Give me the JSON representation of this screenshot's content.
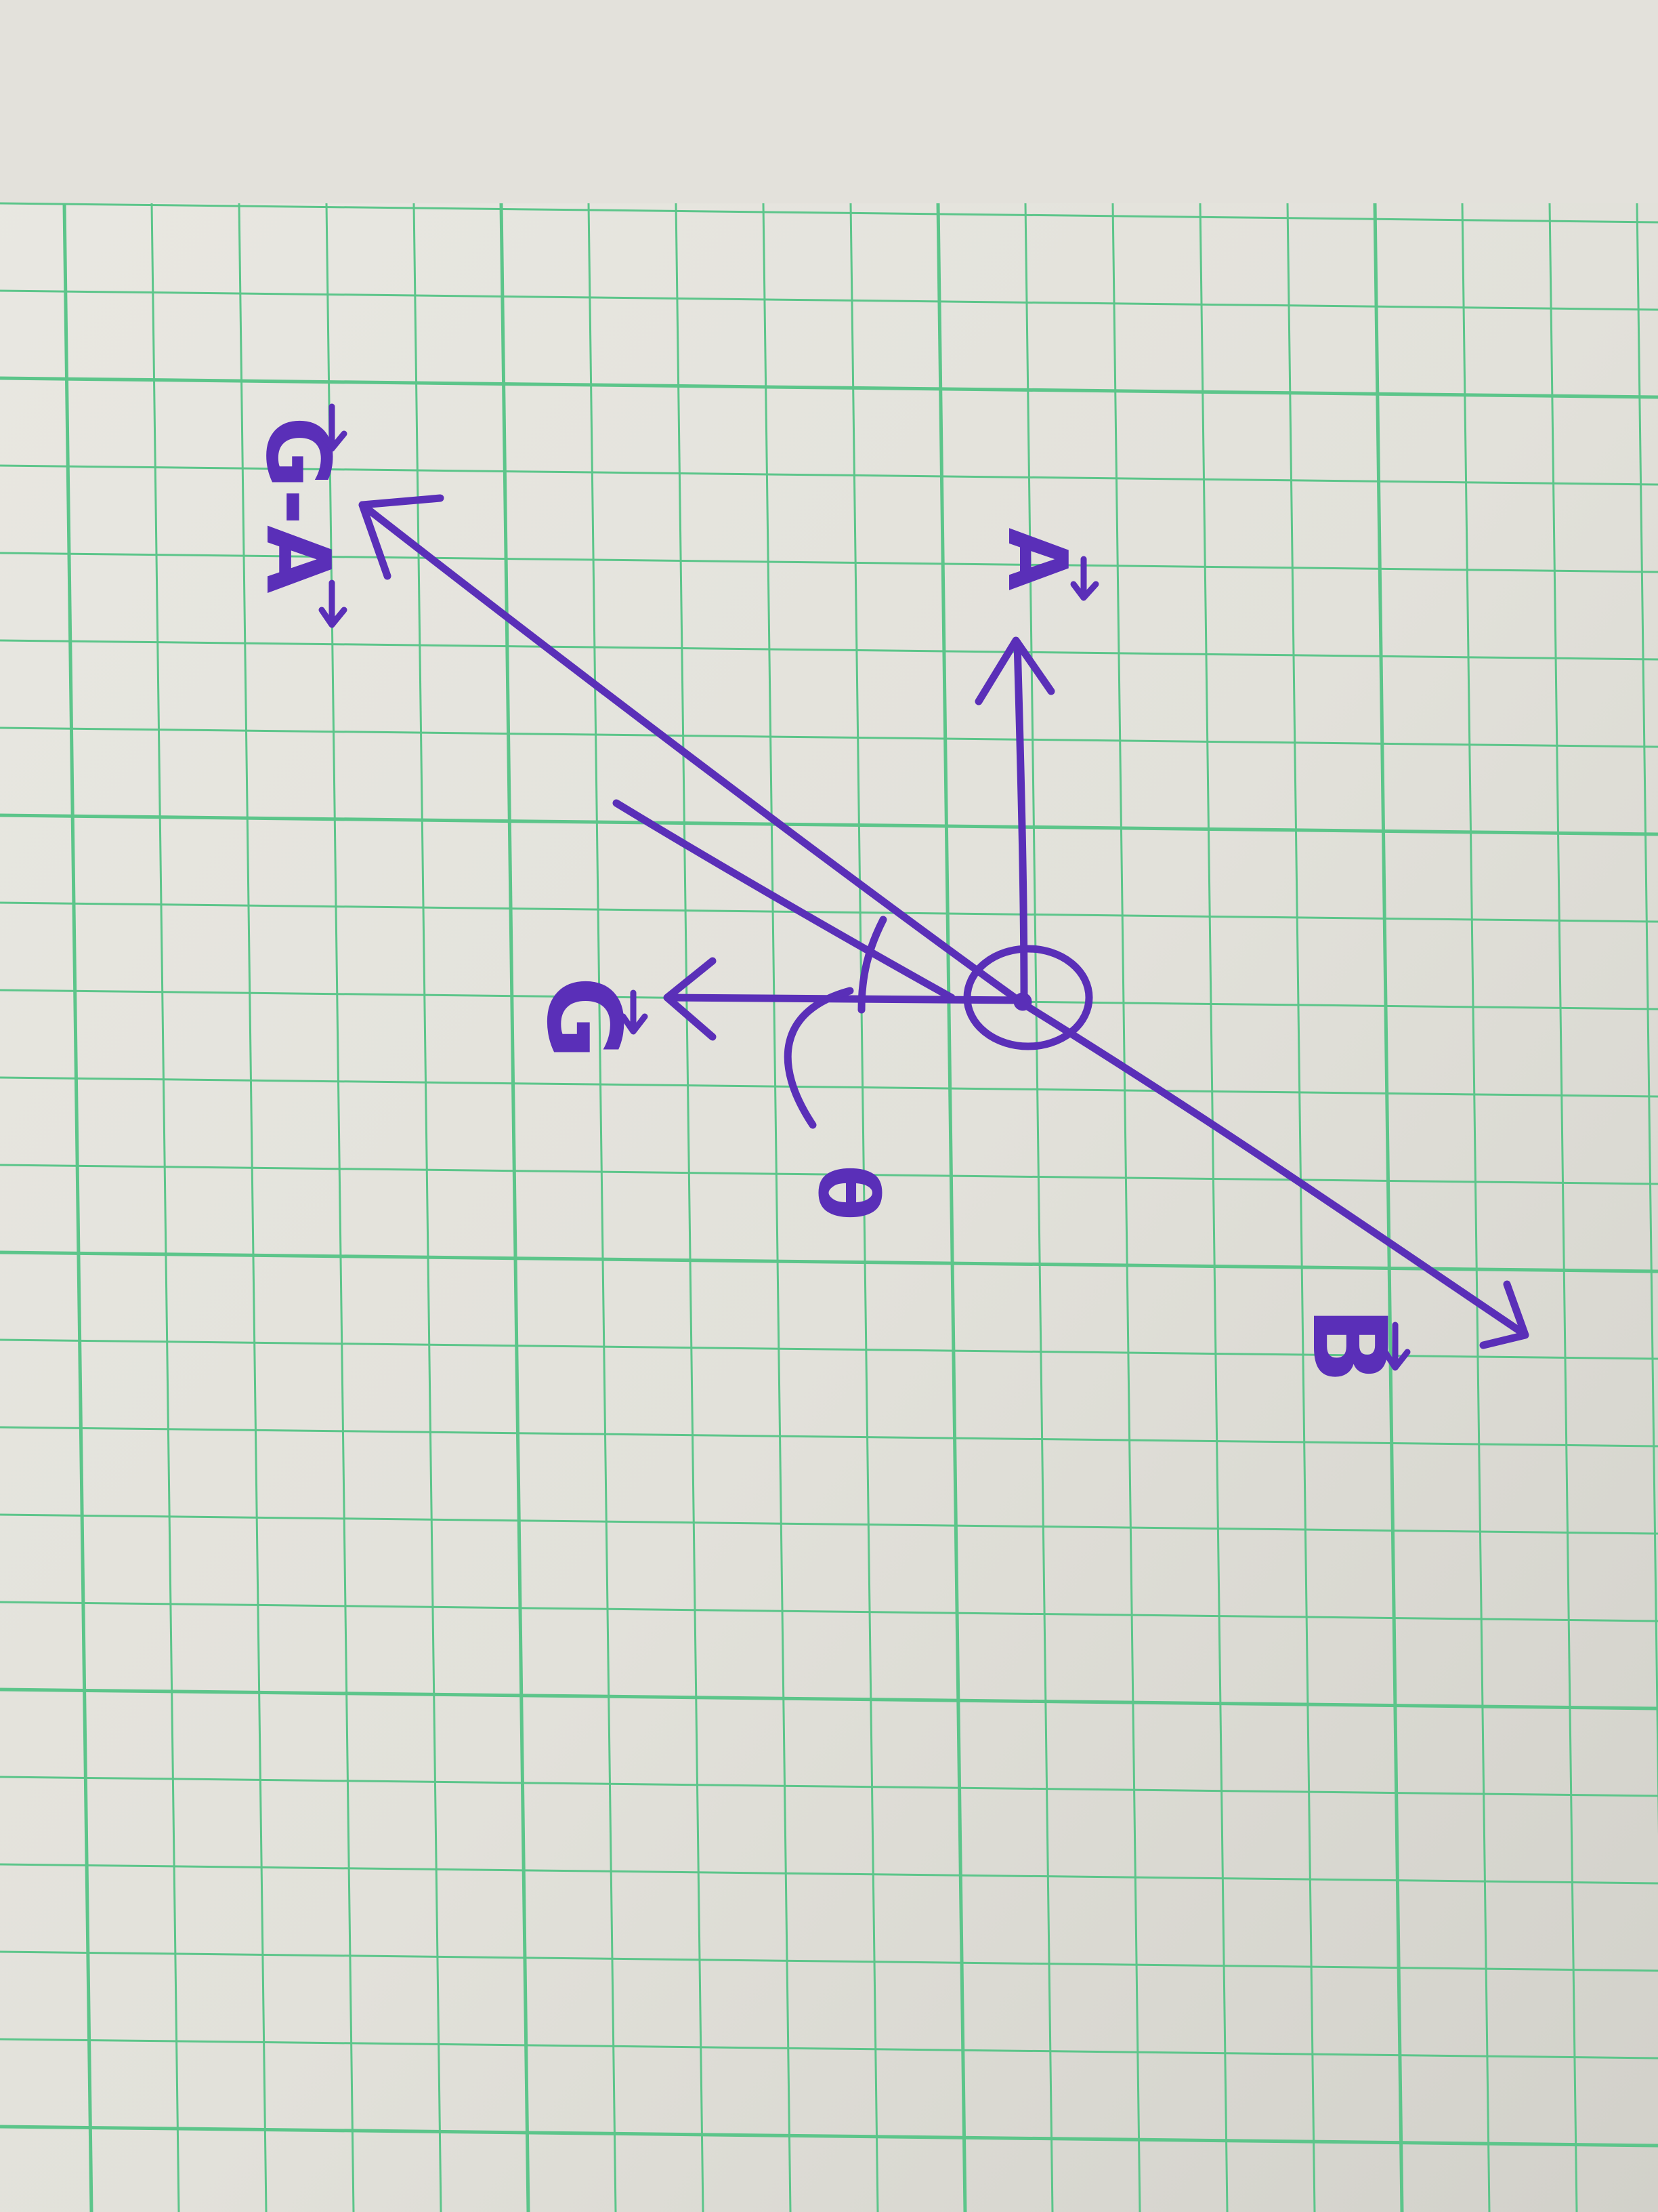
{
  "paper": {
    "background": "#e4e3dc",
    "grid_color": "#5cc58a",
    "ink_color": "#5a2fb8"
  },
  "vectors": [
    {
      "id": "A",
      "label": "A"
    },
    {
      "id": "B",
      "label": "B"
    },
    {
      "id": "G",
      "label": "G"
    },
    {
      "id": "G-A",
      "label": "G-A"
    }
  ],
  "angle": {
    "label": "θ"
  }
}
